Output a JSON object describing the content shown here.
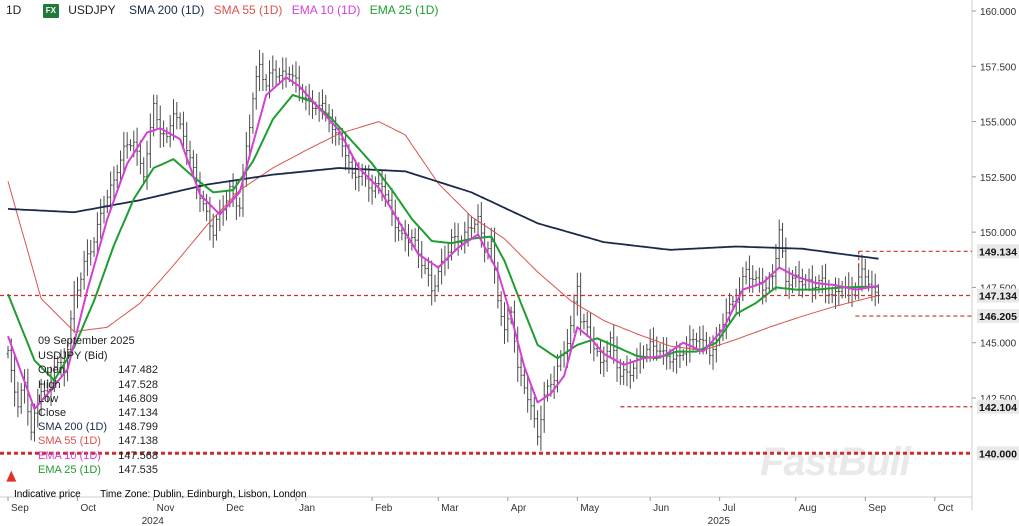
{
  "header": {
    "timeframe": "1D",
    "fx_badge": "FX",
    "symbol": "USDJPY",
    "legend": [
      {
        "label": "SMA 200 (1D)",
        "color": "#1a2b4a"
      },
      {
        "label": "SMA 55 (1D)",
        "color": "#d9534f"
      },
      {
        "label": "EMA 10 (1D)",
        "color": "#d63fd6"
      },
      {
        "label": "EMA 25 (1D)",
        "color": "#1e9e2e"
      }
    ]
  },
  "info_panel": {
    "date": "09 September 2025",
    "instrument": "USDJPY (Bid)",
    "rows": [
      {
        "label": "Open",
        "value": "147.482",
        "color": "#222222"
      },
      {
        "label": "High",
        "value": "147.528",
        "color": "#222222"
      },
      {
        "label": "Low",
        "value": "146.809",
        "color": "#222222"
      },
      {
        "label": "Close",
        "value": "147.134",
        "color": "#222222"
      },
      {
        "label": "SMA 200 (1D)",
        "value": "148.799",
        "color": "#1a2b4a"
      },
      {
        "label": "SMA 55 (1D)",
        "value": "147.138",
        "color": "#d9534f"
      },
      {
        "label": "EMA 10 (1D)",
        "value": "147.568",
        "color": "#d63fd6"
      },
      {
        "label": "EMA 25 (1D)",
        "value": "147.535",
        "color": "#1e9e2e"
      }
    ]
  },
  "footer": {
    "indicative": "Indicative price",
    "timezone": "Time Zone: Dublin, Edinburgh, Lisbon, London"
  },
  "watermark": "FastBull",
  "chart_data": {
    "type": "line",
    "ylim": [
      137.5,
      160.0
    ],
    "y_ticks": [
      "160.000",
      "157.500",
      "155.000",
      "152.500",
      "150.000",
      "147.500",
      "145.000",
      "142.500"
    ],
    "x_ticks": [
      {
        "label": "Sep",
        "year": "",
        "idx": 0
      },
      {
        "label": "Oct",
        "year": "",
        "idx": 21
      },
      {
        "label": "Nov",
        "year": "2024",
        "idx": 44
      },
      {
        "label": "Dec",
        "year": "",
        "idx": 65
      },
      {
        "label": "Jan",
        "year": "",
        "idx": 87
      },
      {
        "label": "Feb",
        "year": "",
        "idx": 110
      },
      {
        "label": "Mar",
        "year": "",
        "idx": 130
      },
      {
        "label": "Apr",
        "year": "",
        "idx": 151
      },
      {
        "label": "May",
        "year": "",
        "idx": 172
      },
      {
        "label": "Jun",
        "year": "",
        "idx": 194
      },
      {
        "label": "Jul",
        "year": "2025",
        "idx": 215
      },
      {
        "label": "Aug",
        "year": "",
        "idx": 238
      },
      {
        "label": "Sep",
        "year": "",
        "idx": 259
      },
      {
        "label": "Oct",
        "year": "",
        "idx": 280
      }
    ],
    "price_anchors": [
      [
        0,
        144.5
      ],
      [
        3,
        141.9
      ],
      [
        5,
        143.0
      ],
      [
        7,
        140.9
      ],
      [
        10,
        143.2
      ],
      [
        12,
        142.8
      ],
      [
        14,
        144.2
      ],
      [
        17,
        143.6
      ],
      [
        20,
        146.8
      ],
      [
        23,
        148.6
      ],
      [
        26,
        149.9
      ],
      [
        29,
        151.4
      ],
      [
        32,
        152.1
      ],
      [
        35,
        153.6
      ],
      [
        38,
        154.2
      ],
      [
        41,
        152.8
      ],
      [
        44,
        155.8
      ],
      [
        46,
        154.4
      ],
      [
        48,
        154.0
      ],
      [
        50,
        155.3
      ],
      [
        53,
        154.5
      ],
      [
        56,
        153.0
      ],
      [
        59,
        151.2
      ],
      [
        62,
        149.8
      ],
      [
        64,
        150.6
      ],
      [
        67,
        151.9
      ],
      [
        70,
        151.4
      ],
      [
        72,
        154.0
      ],
      [
        74,
        156.1
      ],
      [
        76,
        157.4
      ],
      [
        78,
        156.4
      ],
      [
        80,
        157.2
      ],
      [
        82,
        157.1
      ],
      [
        85,
        157.5
      ],
      [
        87,
        157.0
      ],
      [
        89,
        156.2
      ],
      [
        92,
        155.4
      ],
      [
        95,
        155.6
      ],
      [
        98,
        154.8
      ],
      [
        101,
        154.2
      ],
      [
        104,
        152.6
      ],
      [
        107,
        152.3
      ],
      [
        110,
        151.8
      ],
      [
        113,
        152.4
      ],
      [
        116,
        151.0
      ],
      [
        119,
        149.7
      ],
      [
        122,
        149.5
      ],
      [
        125,
        148.6
      ],
      [
        128,
        147.6
      ],
      [
        131,
        148.7
      ],
      [
        134,
        149.6
      ],
      [
        137,
        149.4
      ],
      [
        140,
        150.2
      ],
      [
        142,
        150.7
      ],
      [
        144,
        149.4
      ],
      [
        146,
        149.7
      ],
      [
        148,
        147.0
      ],
      [
        150,
        145.4
      ],
      [
        152,
        146.2
      ],
      [
        154,
        143.7
      ],
      [
        156,
        143.0
      ],
      [
        158,
        142.3
      ],
      [
        160,
        141.0
      ],
      [
        162,
        142.7
      ],
      [
        165,
        143.3
      ],
      [
        168,
        144.4
      ],
      [
        170,
        145.6
      ],
      [
        172,
        147.8
      ],
      [
        173,
        146.3
      ],
      [
        176,
        145.5
      ],
      [
        179,
        143.9
      ],
      [
        182,
        144.8
      ],
      [
        185,
        143.5
      ],
      [
        188,
        143.9
      ],
      [
        191,
        144.5
      ],
      [
        194,
        144.8
      ],
      [
        197,
        144.4
      ],
      [
        200,
        144.2
      ],
      [
        203,
        144.6
      ],
      [
        206,
        145.2
      ],
      [
        209,
        145.1
      ],
      [
        212,
        144.3
      ],
      [
        214,
        144.9
      ],
      [
        217,
        146.6
      ],
      [
        220,
        147.2
      ],
      [
        223,
        148.2
      ],
      [
        226,
        147.5
      ],
      [
        229,
        147.4
      ],
      [
        231,
        148.1
      ],
      [
        233,
        150.3
      ],
      [
        235,
        148.0
      ],
      [
        237,
        147.9
      ],
      [
        240,
        147.6
      ],
      [
        243,
        147.4
      ],
      [
        246,
        147.9
      ],
      [
        249,
        147.3
      ],
      [
        252,
        147.6
      ],
      [
        255,
        147.0
      ],
      [
        258,
        148.1
      ],
      [
        261,
        147.6
      ],
      [
        263,
        147.13
      ]
    ],
    "sma200_anchors": [
      [
        0,
        151.05
      ],
      [
        20,
        150.9
      ],
      [
        40,
        151.45
      ],
      [
        60,
        152.15
      ],
      [
        80,
        152.6
      ],
      [
        100,
        152.9
      ],
      [
        120,
        152.75
      ],
      [
        140,
        151.8
      ],
      [
        160,
        150.4
      ],
      [
        180,
        149.55
      ],
      [
        200,
        149.2
      ],
      [
        220,
        149.35
      ],
      [
        240,
        149.25
      ],
      [
        255,
        148.95
      ],
      [
        263,
        148.8
      ]
    ],
    "sma55_anchors": [
      [
        0,
        152.3
      ],
      [
        10,
        147.0
      ],
      [
        20,
        145.5
      ],
      [
        30,
        145.7
      ],
      [
        40,
        146.8
      ],
      [
        50,
        148.5
      ],
      [
        60,
        150.3
      ],
      [
        70,
        151.9
      ],
      [
        80,
        152.9
      ],
      [
        90,
        153.7
      ],
      [
        100,
        154.45
      ],
      [
        112,
        155.0
      ],
      [
        120,
        154.4
      ],
      [
        130,
        152.2
      ],
      [
        140,
        150.7
      ],
      [
        150,
        149.7
      ],
      [
        160,
        148.2
      ],
      [
        170,
        146.9
      ],
      [
        180,
        146.0
      ],
      [
        190,
        145.4
      ],
      [
        200,
        144.85
      ],
      [
        210,
        144.65
      ],
      [
        220,
        145.15
      ],
      [
        230,
        145.7
      ],
      [
        240,
        146.2
      ],
      [
        250,
        146.65
      ],
      [
        263,
        147.14
      ]
    ],
    "ema10_anchors": [
      [
        0,
        145.3
      ],
      [
        8,
        142.0
      ],
      [
        12,
        142.7
      ],
      [
        18,
        143.8
      ],
      [
        24,
        147.4
      ],
      [
        30,
        150.6
      ],
      [
        36,
        153.1
      ],
      [
        42,
        154.5
      ],
      [
        46,
        154.7
      ],
      [
        52,
        154.2
      ],
      [
        58,
        151.7
      ],
      [
        64,
        150.8
      ],
      [
        70,
        151.8
      ],
      [
        74,
        154.0
      ],
      [
        78,
        156.2
      ],
      [
        84,
        157.0
      ],
      [
        88,
        156.6
      ],
      [
        94,
        155.6
      ],
      [
        100,
        154.6
      ],
      [
        106,
        152.9
      ],
      [
        112,
        152.0
      ],
      [
        118,
        150.5
      ],
      [
        124,
        149.0
      ],
      [
        130,
        148.4
      ],
      [
        136,
        149.3
      ],
      [
        142,
        149.9
      ],
      [
        148,
        148.2
      ],
      [
        152,
        146.2
      ],
      [
        156,
        143.9
      ],
      [
        160,
        142.3
      ],
      [
        164,
        142.7
      ],
      [
        168,
        143.5
      ],
      [
        172,
        145.7
      ],
      [
        176,
        145.2
      ],
      [
        180,
        144.5
      ],
      [
        186,
        144.0
      ],
      [
        192,
        144.3
      ],
      [
        198,
        144.4
      ],
      [
        204,
        145.0
      ],
      [
        210,
        144.6
      ],
      [
        216,
        145.6
      ],
      [
        222,
        147.4
      ],
      [
        228,
        147.7
      ],
      [
        233,
        148.4
      ],
      [
        238,
        148.0
      ],
      [
        244,
        147.7
      ],
      [
        250,
        147.6
      ],
      [
        256,
        147.4
      ],
      [
        263,
        147.57
      ]
    ],
    "ema25_anchors": [
      [
        0,
        147.2
      ],
      [
        8,
        144.2
      ],
      [
        14,
        143.3
      ],
      [
        20,
        144.8
      ],
      [
        26,
        146.9
      ],
      [
        32,
        149.4
      ],
      [
        38,
        151.5
      ],
      [
        44,
        152.9
      ],
      [
        50,
        153.3
      ],
      [
        56,
        152.5
      ],
      [
        62,
        151.8
      ],
      [
        68,
        151.9
      ],
      [
        74,
        153.2
      ],
      [
        80,
        155.1
      ],
      [
        86,
        156.2
      ],
      [
        92,
        155.9
      ],
      [
        98,
        155.1
      ],
      [
        104,
        154.1
      ],
      [
        110,
        153.1
      ],
      [
        116,
        151.9
      ],
      [
        122,
        150.6
      ],
      [
        128,
        149.6
      ],
      [
        134,
        149.5
      ],
      [
        140,
        149.7
      ],
      [
        146,
        149.8
      ],
      [
        150,
        148.7
      ],
      [
        156,
        146.4
      ],
      [
        160,
        144.9
      ],
      [
        166,
        144.3
      ],
      [
        172,
        144.9
      ],
      [
        178,
        145.2
      ],
      [
        184,
        144.8
      ],
      [
        190,
        144.4
      ],
      [
        196,
        144.3
      ],
      [
        202,
        144.6
      ],
      [
        208,
        144.6
      ],
      [
        214,
        145.0
      ],
      [
        220,
        146.3
      ],
      [
        226,
        146.8
      ],
      [
        232,
        147.5
      ],
      [
        238,
        147.4
      ],
      [
        244,
        147.4
      ],
      [
        252,
        147.5
      ],
      [
        263,
        147.54
      ]
    ],
    "levels": [
      {
        "value": 149.134,
        "label": "149.134",
        "from_idx": 257,
        "style": "short"
      },
      {
        "value": 147.134,
        "label": "147.134",
        "from_idx": 0,
        "style": "full"
      },
      {
        "value": 146.205,
        "label": "146.205",
        "from_idx": 256,
        "style": "short"
      },
      {
        "value": 142.104,
        "label": "142.104",
        "from_idx": 185,
        "style": "short"
      },
      {
        "value": 140.0,
        "label": "140.000",
        "from_idx": 0,
        "style": "thick"
      }
    ],
    "arrow_marker": {
      "idx": 1,
      "value": 138.9
    }
  }
}
